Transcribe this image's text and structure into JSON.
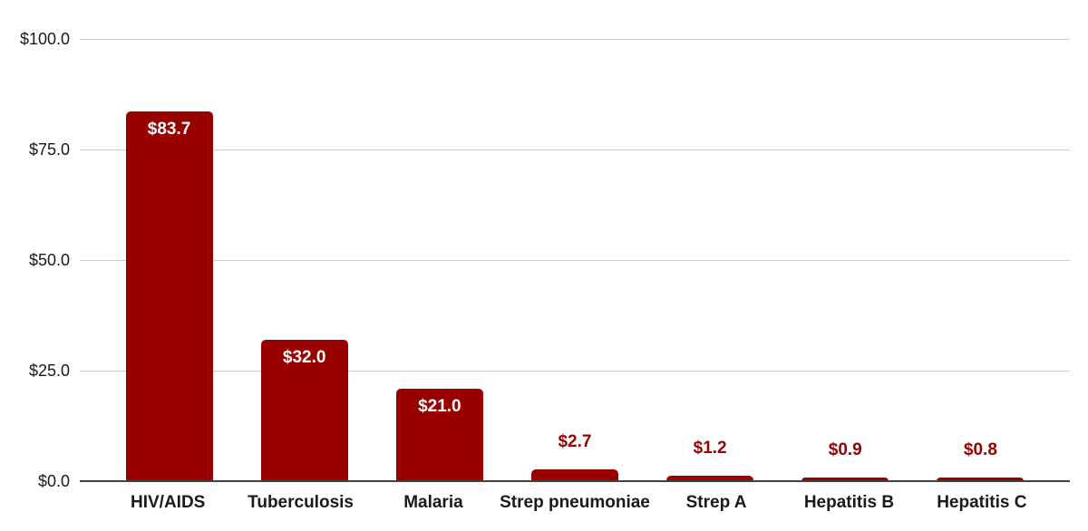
{
  "chart_data": {
    "type": "bar",
    "title": "",
    "xlabel": "",
    "ylabel": "",
    "categories": [
      "HIV/AIDS",
      "Tuberculosis",
      "Malaria",
      "Strep pneumoniae",
      "Strep A",
      "Hepatitis B",
      "Hepatitis C"
    ],
    "values": [
      83.7,
      32.0,
      21.0,
      2.7,
      1.2,
      0.9,
      0.8
    ],
    "data_labels": [
      "$83.7",
      "$32.0",
      "$21.0",
      "$2.7",
      "$1.2",
      "$0.9",
      "$0.8"
    ],
    "label_placement": [
      "inside",
      "inside",
      "inside",
      "outside",
      "outside",
      "outside",
      "outside"
    ],
    "ylim": [
      0,
      100
    ],
    "yticks": [
      0,
      25,
      50,
      75,
      100
    ],
    "ytick_labels": [
      "$0.0",
      "$25.0",
      "$50.0",
      "$75.0",
      "$100.0"
    ],
    "grid": true,
    "legend": false,
    "colors": {
      "bar": "#990000",
      "inside_label": "#ffffff",
      "outside_label": "#990000",
      "gridline": "#cccccc",
      "axis_line": "#424242",
      "text": "#1a1a1a",
      "background": "#ffffff"
    }
  }
}
